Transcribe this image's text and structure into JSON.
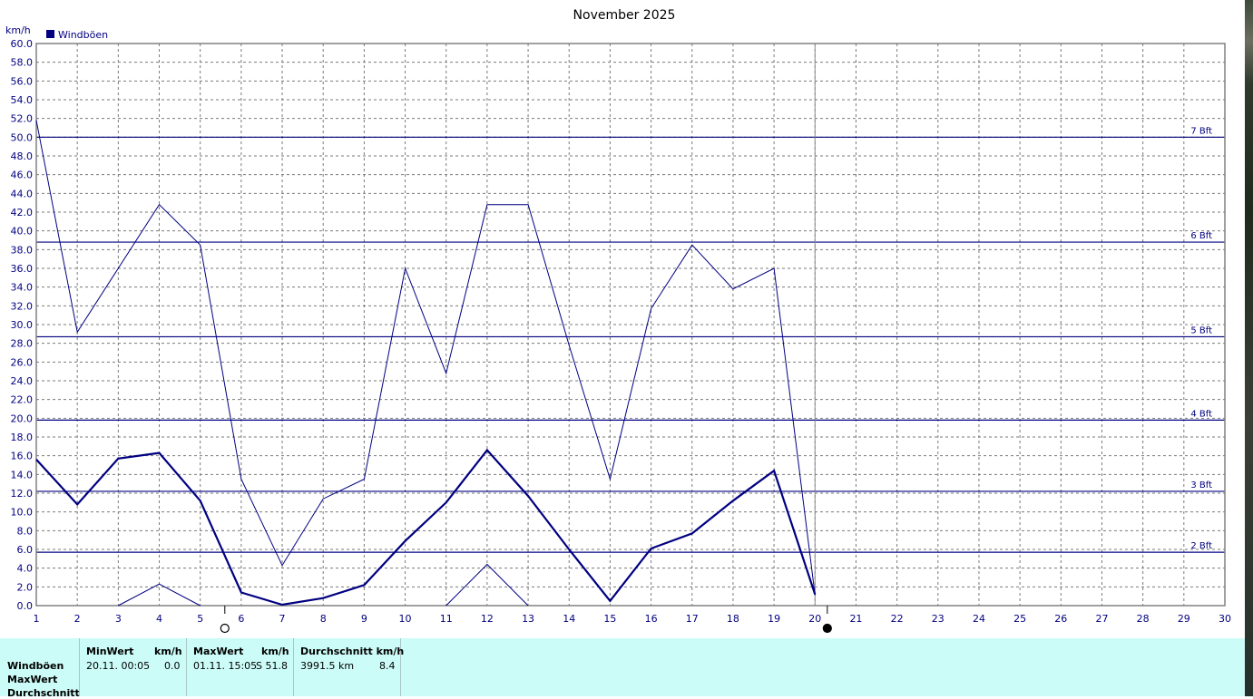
{
  "chart_data": {
    "type": "line",
    "title": "November 2025",
    "ylabel": "km/h",
    "ylim": [
      0,
      60
    ],
    "y_ticks": [
      "0.0",
      "2.0",
      "4.0",
      "6.0",
      "8.0",
      "10.0",
      "12.0",
      "14.0",
      "16.0",
      "18.0",
      "20.0",
      "22.0",
      "24.0",
      "26.0",
      "28.0",
      "30.0",
      "32.0",
      "34.0",
      "36.0",
      "38.0",
      "40.0",
      "42.0",
      "44.0",
      "46.0",
      "48.0",
      "50.0",
      "52.0",
      "54.0",
      "56.0",
      "58.0",
      "60.0"
    ],
    "x_ticks": [
      "1",
      "2",
      "3",
      "4",
      "5",
      "6",
      "7",
      "8",
      "9",
      "10",
      "11",
      "12",
      "13",
      "14",
      "15",
      "16",
      "17",
      "18",
      "19",
      "20",
      "21",
      "22",
      "23",
      "24",
      "25",
      "26",
      "27",
      "28",
      "29",
      "30"
    ],
    "xlim": [
      1,
      30
    ],
    "grid": true,
    "legend": {
      "label": "Windböen",
      "position": "top-left",
      "color": "#000080"
    },
    "series": [
      {
        "name": "Windböen",
        "role": "max",
        "color": "#000080",
        "x": [
          1,
          2,
          3,
          4,
          5,
          6,
          7,
          8,
          9,
          10,
          11,
          12,
          13,
          14,
          15,
          16,
          17,
          18,
          19,
          20
        ],
        "values": [
          51.8,
          29.2,
          36.0,
          42.8,
          38.5,
          13.5,
          4.3,
          11.4,
          13.5,
          36.0,
          24.8,
          42.8,
          42.8,
          27.8,
          13.5,
          31.7,
          38.5,
          33.8,
          36.0,
          1.1
        ]
      },
      {
        "name": "Windböen",
        "role": "average",
        "color": "#000080",
        "x": [
          1,
          2,
          3,
          4,
          5,
          6,
          7,
          8,
          9,
          10,
          11,
          12,
          13,
          14,
          15,
          16,
          17,
          18,
          19,
          20
        ],
        "values": [
          15.6,
          10.8,
          15.7,
          16.3,
          11.2,
          1.4,
          0.1,
          0.8,
          2.2,
          6.9,
          11.0,
          16.6,
          11.7,
          6.0,
          0.5,
          6.1,
          7.7,
          11.2,
          14.4,
          1.2
        ]
      },
      {
        "name": "Windböen",
        "role": "min",
        "color": "#000080",
        "x": [
          3,
          4,
          5
        ],
        "values": [
          0.0,
          2.3,
          0.0
        ]
      },
      {
        "name": "Windböen",
        "role": "min",
        "color": "#000080",
        "x": [
          11,
          12,
          13
        ],
        "values": [
          0.0,
          4.4,
          0.0
        ]
      }
    ],
    "reference_lines": [
      {
        "label": "2 Bft",
        "value": 5.7
      },
      {
        "label": "3 Bft",
        "value": 12.2
      },
      {
        "label": "4 Bft",
        "value": 19.8
      },
      {
        "label": "5 Bft",
        "value": 28.7
      },
      {
        "label": "6 Bft",
        "value": 38.8
      },
      {
        "label": "7 Bft",
        "value": 50.0
      }
    ],
    "current_day": 20,
    "moon_phases": [
      {
        "day": 5.6,
        "phase": "full"
      },
      {
        "day": 20.3,
        "phase": "new"
      }
    ]
  },
  "stats": {
    "rows": [
      "Windböen",
      "MaxWert",
      "Durchschnitt"
    ],
    "min_header": "MinWert",
    "min_unit": "km/h",
    "min_date": "20.11.  00:05",
    "min_value": "0.0",
    "max_header": "MaxWert",
    "max_unit": "km/h",
    "max_date": "01.11.  15:05",
    "max_value": "S 51.8",
    "avg_header": "Durchschnitt km/h",
    "avg_distance": "3991.5 km",
    "avg_value": "8.4"
  }
}
